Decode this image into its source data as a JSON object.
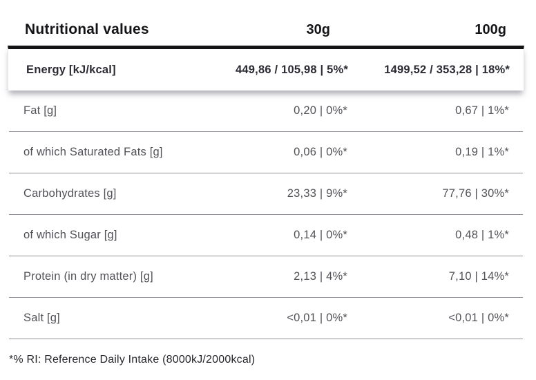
{
  "table": {
    "header": {
      "title": "Nutritional values",
      "col30": "30g",
      "col100": "100g"
    },
    "energy": {
      "label": "Energy [kJ/kcal]",
      "v30": "449,86 / 105,98 | 5%*",
      "v100": "1499,52 / 353,28 | 18%*"
    },
    "rows": [
      {
        "label": "Fat [g]",
        "v30": "0,20 | 0%*",
        "v100": "0,67 | 1%*"
      },
      {
        "label": "of which Saturated Fats [g]",
        "v30": "0,06 | 0%*",
        "v100": "0,19 | 1%*"
      },
      {
        "label": "Carbohydrates [g]",
        "v30": "23,33 | 9%*",
        "v100": "77,76 | 30%*"
      },
      {
        "label": "of which Sugar [g]",
        "v30": "0,14 | 0%*",
        "v100": "0,48 | 1%*"
      },
      {
        "label": "Protein (in dry matter) [g]",
        "v30": "2,13 | 4%*",
        "v100": "7,10 | 14%*"
      },
      {
        "label": "Salt [g]",
        "v30": "<0,01 | 0%*",
        "v100": "<0,01 | 0%*"
      }
    ],
    "footnote": "*% RI: Reference Daily Intake (8000kJ/2000kcal)"
  },
  "colors": {
    "heading_text": "#141418",
    "energy_text": "#2b2b33",
    "row_text": "#515158",
    "divider": "#8f8f95",
    "heavy_rule": "#131316",
    "background": "#ffffff"
  },
  "chart_data": {
    "type": "table",
    "title": "Nutritional values",
    "columns": [
      "Nutritional values",
      "30g",
      "100g"
    ],
    "rows": [
      [
        "Energy [kJ/kcal]",
        "449,86 / 105,98 | 5%*",
        "1499,52 / 353,28 | 18%*"
      ],
      [
        "Fat [g]",
        "0,20 | 0%*",
        "0,67 | 1%*"
      ],
      [
        "of which Saturated Fats [g]",
        "0,06 | 0%*",
        "0,19 | 1%*"
      ],
      [
        "Carbohydrates [g]",
        "23,33 | 9%*",
        "77,76 | 30%*"
      ],
      [
        "of which Sugar [g]",
        "0,14 | 0%*",
        "0,48 | 1%*"
      ],
      [
        "Protein (in dry matter) [g]",
        "2,13 | 4%*",
        "7,10 | 14%*"
      ],
      [
        "Salt [g]",
        "<0,01 | 0%*",
        "<0,01 | 0%*"
      ]
    ],
    "annotations": [
      "*% RI: Reference Daily Intake (8000kJ/2000kcal)"
    ],
    "layout": {
      "highlighted_row": "Energy [kJ/kcal]",
      "value_alignment": "right",
      "grid": "horizontal-dividers"
    }
  }
}
